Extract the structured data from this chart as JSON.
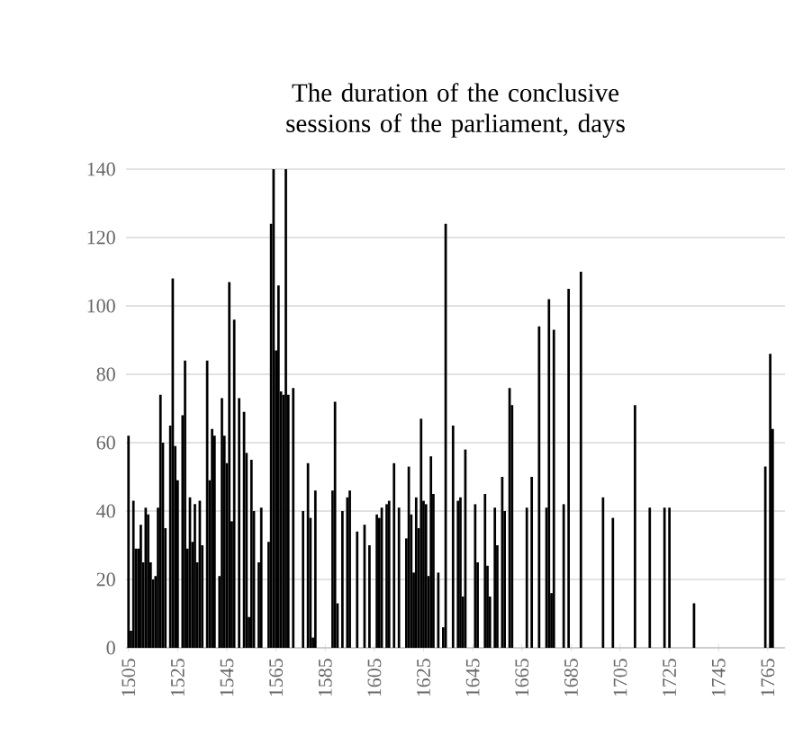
{
  "chart_data": {
    "type": "bar",
    "title": "The duration of the conclusive sessions of the parliament, days",
    "x": [
      1505,
      1506,
      1507,
      1508,
      1509,
      1510,
      1511,
      1512,
      1513,
      1514,
      1515,
      1516,
      1517,
      1518,
      1519,
      1520,
      1522,
      1523,
      1524,
      1525,
      1527,
      1528,
      1529,
      1530,
      1531,
      1532,
      1533,
      1534,
      1535,
      1537,
      1538,
      1539,
      1540,
      1542,
      1543,
      1544,
      1545,
      1546,
      1547,
      1548,
      1550,
      1552,
      1553,
      1554,
      1555,
      1556,
      1558,
      1559,
      1562,
      1563,
      1564,
      1565,
      1566,
      1567,
      1568,
      1569,
      1570,
      1572,
      1576,
      1578,
      1579,
      1580,
      1581,
      1588,
      1589,
      1590,
      1592,
      1594,
      1595,
      1598,
      1601,
      1603,
      1606,
      1607,
      1608,
      1610,
      1611,
      1613,
      1615,
      1618,
      1619,
      1620,
      1621,
      1622,
      1623,
      1624,
      1625,
      1626,
      1627,
      1628,
      1629,
      1631,
      1633,
      1634,
      1637,
      1639,
      1640,
      1641,
      1642,
      1646,
      1647,
      1650,
      1651,
      1652,
      1654,
      1655,
      1657,
      1658,
      1660,
      1661,
      1667,
      1669,
      1672,
      1675,
      1676,
      1677,
      1678,
      1682,
      1684,
      1689,
      1698,
      1702,
      1711,
      1717,
      1723,
      1725,
      1735,
      1764,
      1766,
      1767
    ],
    "values": [
      62,
      5,
      43,
      29,
      29,
      36,
      25,
      41,
      39,
      25,
      20,
      21,
      41,
      74,
      60,
      35,
      65,
      108,
      59,
      49,
      68,
      84,
      29,
      44,
      31,
      42,
      25,
      43,
      30,
      84,
      49,
      64,
      62,
      21,
      73,
      62,
      54,
      107,
      37,
      96,
      73,
      69,
      57,
      9,
      55,
      40,
      25,
      41,
      31,
      124,
      140,
      87,
      106,
      75,
      74,
      140,
      74,
      76,
      40,
      54,
      38,
      3,
      46,
      46,
      72,
      13,
      40,
      44,
      46,
      34,
      36,
      30,
      39,
      38,
      41,
      42,
      43,
      54,
      41,
      32,
      53,
      39,
      22,
      44,
      35,
      67,
      43,
      42,
      21,
      56,
      45,
      22,
      6,
      124,
      65,
      43,
      44,
      15,
      58,
      42,
      25,
      45,
      24,
      15,
      41,
      30,
      50,
      40,
      76,
      71,
      41,
      50,
      94,
      41,
      102,
      16,
      93,
      42,
      105,
      110,
      44,
      38,
      71,
      41,
      41,
      41,
      13,
      53,
      86,
      64
    ],
    "color": "#000000",
    "xlim": [
      1504,
      1772
    ],
    "xticks": [
      1505,
      1525,
      1545,
      1565,
      1585,
      1605,
      1625,
      1645,
      1665,
      1685,
      1705,
      1725,
      1745,
      1765
    ],
    "ylim": [
      0,
      140
    ],
    "yticks": [
      0,
      20,
      40,
      60,
      80,
      100,
      120,
      140
    ],
    "grid": "y"
  }
}
